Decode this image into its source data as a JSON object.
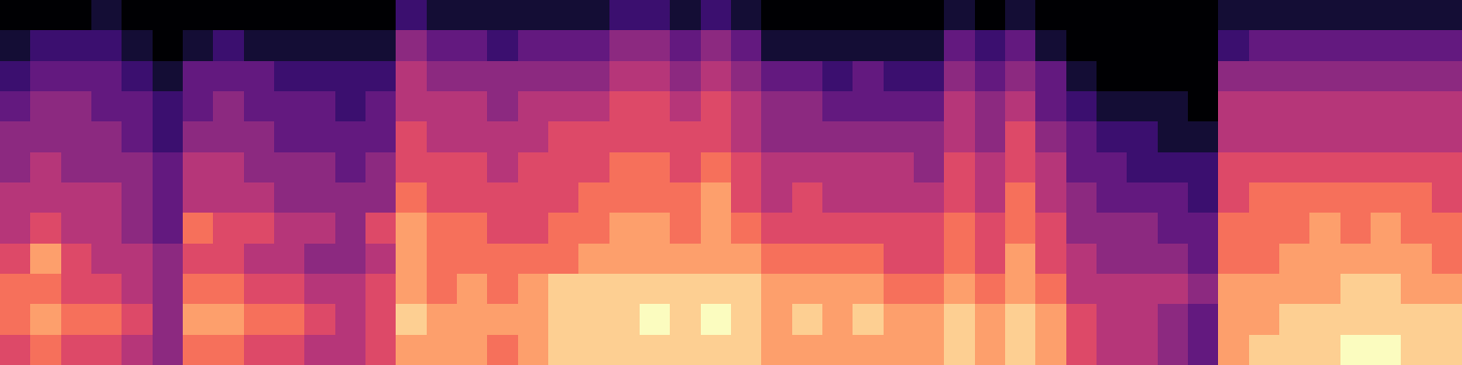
{
  "chart_data": {
    "type": "heatmap",
    "color": "magma",
    "color_range": [
      0,
      10
    ],
    "tick_labels": false,
    "cells": [
      [
        0,
        0,
        0,
        1,
        0,
        0,
        0,
        0,
        0,
        0,
        0,
        0,
        0,
        2,
        1,
        1,
        1,
        1,
        1,
        1,
        2,
        2,
        1,
        2,
        1,
        0,
        0,
        0,
        0,
        0,
        0,
        1,
        0,
        1,
        0,
        0,
        0,
        0,
        0,
        0,
        1,
        1,
        1,
        1,
        1,
        1,
        1,
        1
      ],
      [
        1,
        2,
        2,
        2,
        1,
        0,
        1,
        2,
        1,
        1,
        1,
        1,
        1,
        4,
        3,
        3,
        2,
        3,
        3,
        3,
        4,
        4,
        3,
        4,
        3,
        1,
        1,
        1,
        1,
        1,
        1,
        3,
        2,
        3,
        1,
        0,
        0,
        0,
        0,
        0,
        2,
        3,
        3,
        3,
        3,
        3,
        3,
        3
      ],
      [
        2,
        3,
        3,
        3,
        2,
        1,
        3,
        3,
        3,
        2,
        2,
        2,
        2,
        5,
        4,
        4,
        4,
        4,
        4,
        4,
        5,
        5,
        4,
        5,
        4,
        3,
        3,
        2,
        3,
        2,
        2,
        4,
        3,
        4,
        3,
        1,
        0,
        0,
        0,
        0,
        4,
        4,
        4,
        4,
        4,
        4,
        4,
        4
      ],
      [
        3,
        4,
        4,
        3,
        3,
        2,
        3,
        4,
        3,
        3,
        3,
        2,
        3,
        5,
        5,
        5,
        4,
        5,
        5,
        5,
        6,
        6,
        5,
        6,
        5,
        4,
        4,
        3,
        3,
        3,
        3,
        5,
        4,
        5,
        3,
        2,
        1,
        1,
        1,
        0,
        5,
        5,
        5,
        5,
        5,
        5,
        5,
        5
      ],
      [
        4,
        4,
        4,
        4,
        3,
        2,
        4,
        4,
        4,
        3,
        3,
        3,
        3,
        6,
        5,
        5,
        5,
        5,
        6,
        6,
        6,
        6,
        6,
        6,
        5,
        4,
        4,
        4,
        4,
        4,
        4,
        5,
        4,
        6,
        4,
        3,
        2,
        2,
        1,
        1,
        5,
        5,
        5,
        5,
        5,
        5,
        5,
        5
      ],
      [
        4,
        5,
        4,
        4,
        4,
        3,
        5,
        5,
        4,
        4,
        4,
        3,
        4,
        6,
        6,
        6,
        5,
        6,
        6,
        6,
        7,
        7,
        6,
        7,
        6,
        5,
        5,
        5,
        5,
        5,
        4,
        6,
        5,
        6,
        5,
        3,
        3,
        2,
        2,
        2,
        6,
        6,
        6,
        6,
        6,
        6,
        6,
        6
      ],
      [
        5,
        5,
        5,
        5,
        4,
        3,
        5,
        5,
        5,
        4,
        4,
        4,
        4,
        7,
        6,
        6,
        6,
        6,
        6,
        7,
        7,
        7,
        7,
        8,
        6,
        5,
        6,
        5,
        5,
        5,
        5,
        6,
        5,
        7,
        5,
        4,
        3,
        3,
        3,
        2,
        6,
        7,
        7,
        7,
        7,
        7,
        7,
        6
      ],
      [
        5,
        6,
        5,
        5,
        4,
        3,
        7,
        6,
        6,
        5,
        5,
        4,
        6,
        8,
        7,
        7,
        6,
        6,
        7,
        7,
        8,
        8,
        7,
        8,
        7,
        6,
        6,
        6,
        6,
        6,
        6,
        7,
        6,
        7,
        6,
        4,
        4,
        4,
        3,
        3,
        7,
        7,
        7,
        8,
        7,
        8,
        7,
        7
      ],
      [
        6,
        8,
        6,
        5,
        5,
        4,
        6,
        6,
        5,
        5,
        4,
        4,
        5,
        8,
        7,
        7,
        7,
        7,
        7,
        8,
        8,
        8,
        8,
        8,
        8,
        7,
        7,
        7,
        7,
        6,
        6,
        7,
        6,
        8,
        6,
        5,
        4,
        4,
        4,
        3,
        7,
        7,
        8,
        8,
        8,
        8,
        8,
        7
      ],
      [
        7,
        7,
        6,
        6,
        5,
        4,
        7,
        7,
        6,
        6,
        5,
        5,
        6,
        8,
        7,
        8,
        7,
        8,
        9,
        9,
        9,
        9,
        9,
        9,
        9,
        8,
        8,
        8,
        8,
        7,
        7,
        8,
        7,
        8,
        7,
        5,
        5,
        5,
        5,
        4,
        8,
        8,
        8,
        8,
        9,
        9,
        8,
        8
      ],
      [
        7,
        8,
        7,
        7,
        6,
        4,
        8,
        8,
        7,
        7,
        6,
        5,
        6,
        9,
        8,
        8,
        8,
        8,
        9,
        9,
        9,
        10,
        9,
        10,
        9,
        8,
        9,
        8,
        9,
        8,
        8,
        9,
        8,
        9,
        8,
        6,
        5,
        5,
        4,
        3,
        8,
        8,
        9,
        9,
        9,
        9,
        9,
        9
      ],
      [
        6,
        7,
        6,
        6,
        5,
        4,
        7,
        7,
        6,
        6,
        5,
        5,
        6,
        8,
        8,
        8,
        7,
        8,
        9,
        9,
        9,
        9,
        9,
        9,
        9,
        8,
        8,
        8,
        8,
        8,
        8,
        9,
        8,
        9,
        8,
        6,
        5,
        5,
        4,
        3,
        8,
        9,
        9,
        9,
        10,
        10,
        9,
        9
      ]
    ]
  }
}
